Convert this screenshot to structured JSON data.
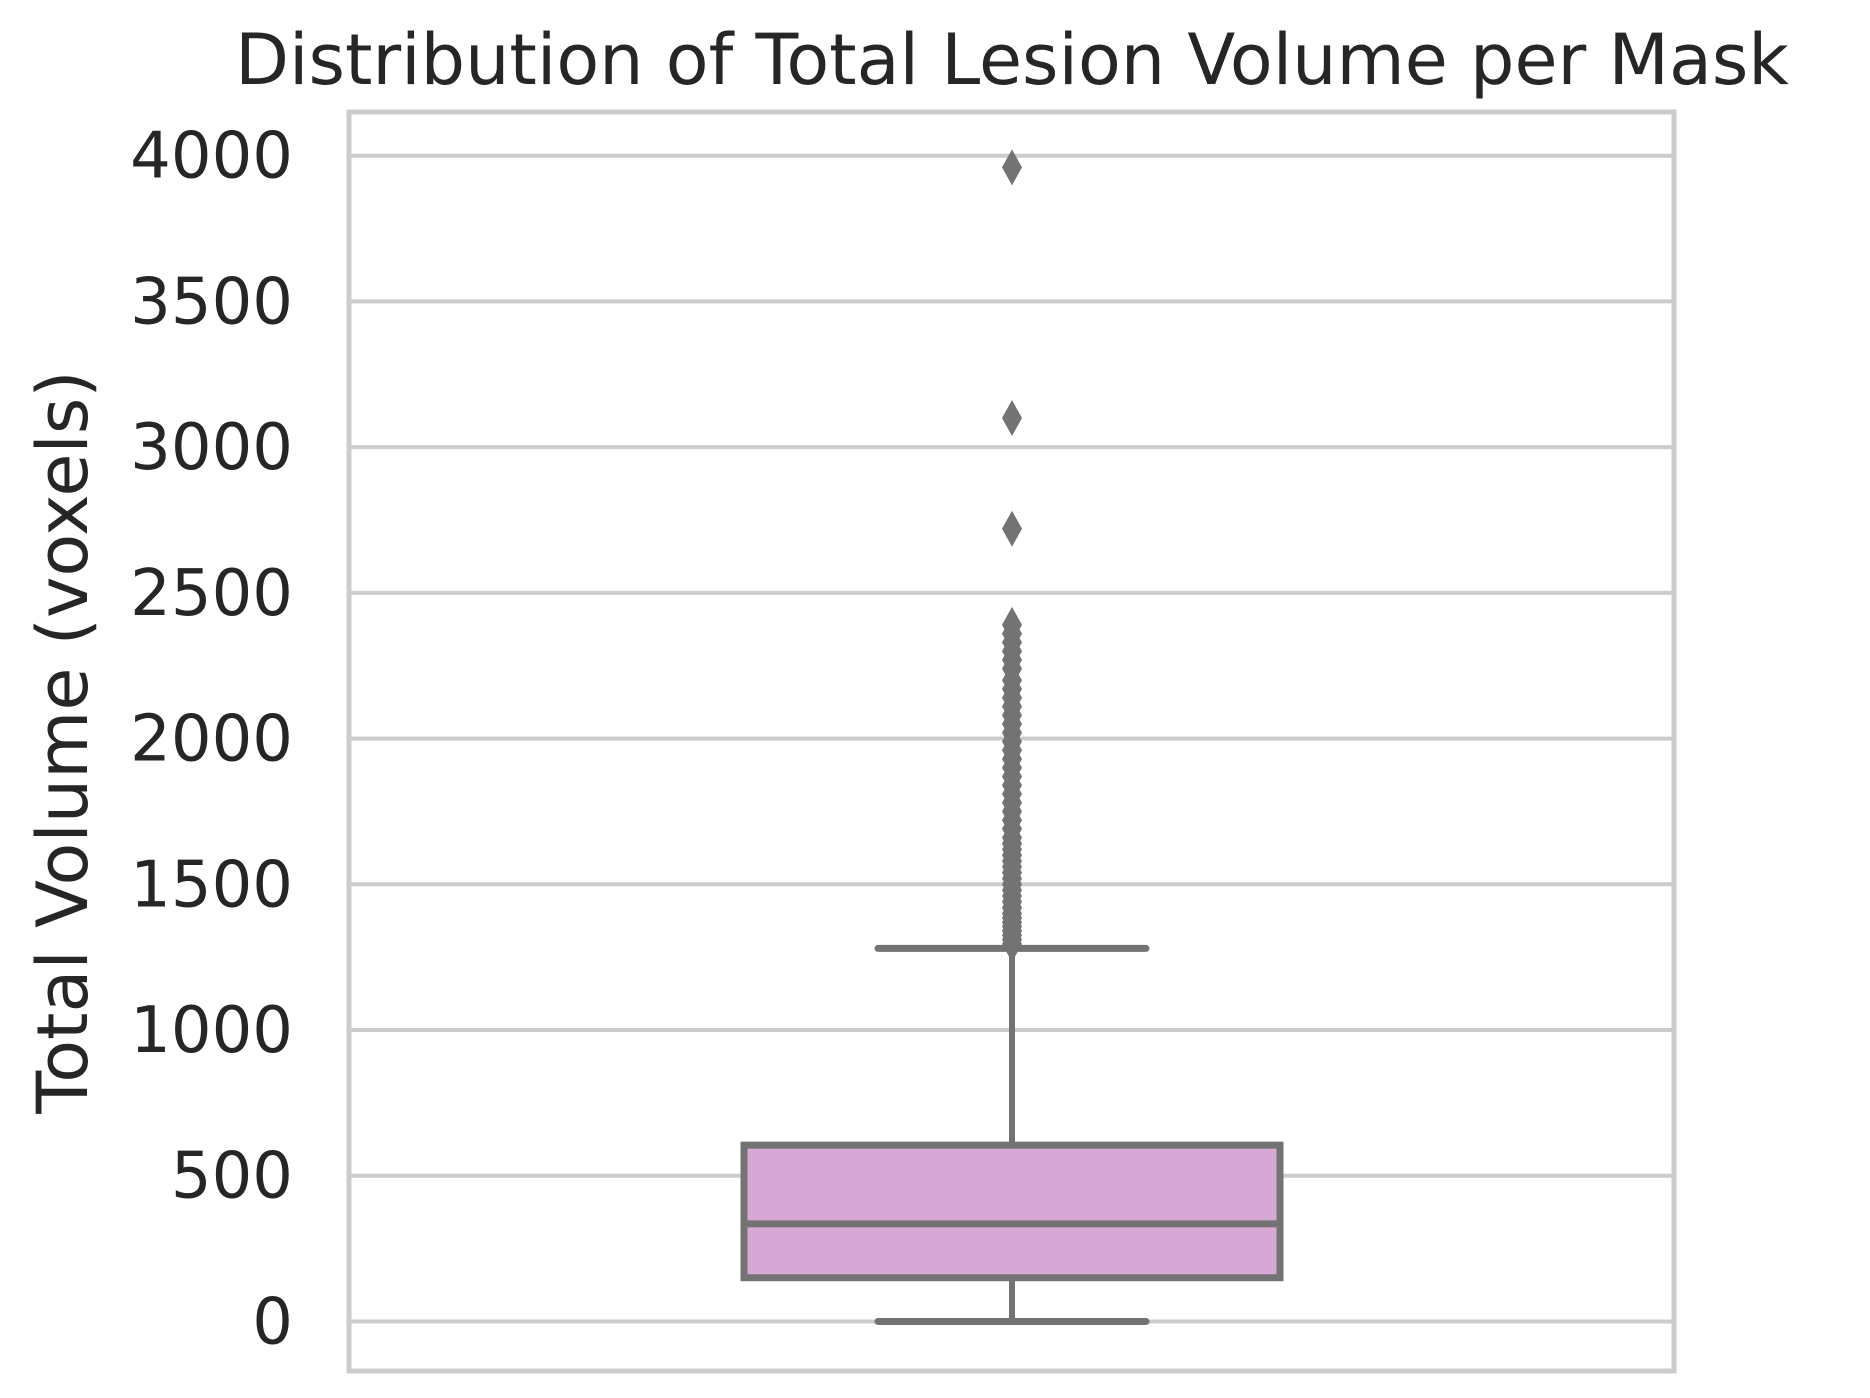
{
  "chart_data": {
    "type": "boxplot",
    "title": "Distribution of Total Lesion Volume per Mask",
    "xlabel": "",
    "ylabel": "Total Volume (voxels)",
    "ylim": [
      -170,
      4150
    ],
    "yticks": [
      0,
      500,
      1000,
      1500,
      2000,
      2500,
      3000,
      3500,
      4000
    ],
    "grid": true,
    "box": {
      "whisker_low": 0,
      "q1": 150,
      "median": 335,
      "q3": 605,
      "whisker_high": 1280
    },
    "outliers": [
      1295,
      1310,
      1325,
      1340,
      1355,
      1370,
      1385,
      1400,
      1420,
      1440,
      1460,
      1480,
      1500,
      1520,
      1540,
      1560,
      1580,
      1600,
      1620,
      1640,
      1660,
      1690,
      1720,
      1750,
      1780,
      1810,
      1840,
      1870,
      1900,
      1930,
      1960,
      1990,
      2020,
      2050,
      2080,
      2110,
      2140,
      2170,
      2200,
      2240,
      2270,
      2300,
      2330,
      2360,
      2390,
      2720,
      3100,
      3960
    ],
    "colors": {
      "box_fill": "#d7a7d6",
      "box_edge": "#737373",
      "grid": "#cccccc",
      "frame": "#cccccc",
      "text": "#262626"
    }
  }
}
